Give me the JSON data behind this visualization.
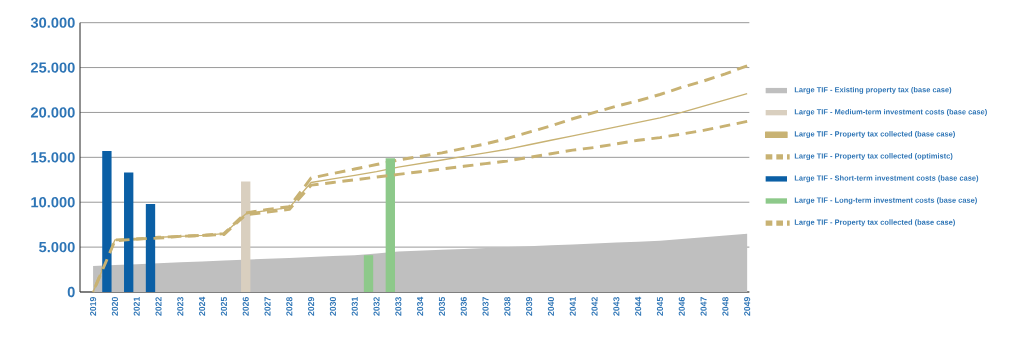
{
  "chart_data": {
    "type": "line",
    "categories": [
      "2019",
      "2020",
      "2021",
      "2022",
      "2023",
      "2024",
      "2025",
      "2026",
      "2027",
      "2028",
      "2029",
      "2030",
      "2031",
      "2032",
      "2033",
      "2034",
      "2035",
      "2036",
      "2037",
      "2038",
      "2039",
      "2040",
      "2041",
      "2042",
      "2043",
      "2044",
      "2045",
      "2046",
      "2047",
      "2048",
      "2049"
    ],
    "ylim": [
      0,
      30000
    ],
    "yticks": [
      {
        "value": 0,
        "label": "0"
      },
      {
        "value": 5000,
        "label": "5.000"
      },
      {
        "value": 10000,
        "label": "10.000"
      },
      {
        "value": 15000,
        "label": "15.000"
      },
      {
        "value": 20000,
        "label": "20.000"
      },
      {
        "value": 25000,
        "label": "25.000"
      },
      {
        "value": 30000,
        "label": "30.000"
      }
    ],
    "grid": "y",
    "legend": "right",
    "series": [
      {
        "name": "Large TIF - Existing property tax (base case)",
        "type": "area",
        "color": "#bfbfbf",
        "values": [
          2900,
          3000,
          3100,
          3200,
          3300,
          3400,
          3500,
          null,
          3700,
          3800,
          3900,
          4000,
          4100,
          4300,
          4500,
          4600,
          4700,
          4800,
          4900,
          5000,
          5100,
          5200,
          5300,
          5400,
          5500,
          5600,
          5700,
          5900,
          6100,
          6300,
          6500
        ]
      },
      {
        "name": "Large TIF - Medium-term investment costs (base case)",
        "type": "bar",
        "color": "#d9cfbf",
        "values": [
          null,
          null,
          null,
          null,
          null,
          null,
          null,
          12300,
          null,
          null,
          null,
          null,
          null,
          null,
          null,
          null,
          null,
          null,
          null,
          null,
          null,
          null,
          null,
          null,
          null,
          null,
          null,
          null,
          null,
          null,
          null
        ]
      },
      {
        "name": "Large TIF - Property tax collected (base case)",
        "line_style": "solid",
        "color": "#c8b273",
        "values": [
          0,
          5800,
          5900,
          6100,
          6200,
          6300,
          6500,
          8700,
          9100,
          9400,
          12200,
          12600,
          13000,
          13400,
          13900,
          14300,
          14700,
          15100,
          15500,
          15900,
          16400,
          16900,
          17400,
          17900,
          18400,
          18900,
          19400,
          20000,
          20700,
          21400,
          22100
        ]
      },
      {
        "name": "Large TIF - Property tax collected (optimistc)",
        "line_style": "dashed",
        "color": "#c8b273",
        "values": [
          0,
          5800,
          5900,
          6100,
          6200,
          6300,
          6500,
          8800,
          9200,
          9500,
          12700,
          13200,
          13700,
          14200,
          14700,
          15100,
          15500,
          16000,
          16500,
          17100,
          17800,
          18500,
          19300,
          20000,
          20700,
          21300,
          22000,
          22800,
          23500,
          24300,
          25200
        ]
      },
      {
        "name": "Large TIF - Short-term investment costs (base case)",
        "type": "bar",
        "color": "#0b5fa5",
        "values": [
          null,
          15700,
          13300,
          9800,
          null,
          null,
          null,
          null,
          null,
          null,
          null,
          null,
          null,
          null,
          null,
          null,
          null,
          null,
          null,
          null,
          null,
          null,
          null,
          null,
          null,
          null,
          null,
          null,
          null,
          null,
          null
        ]
      },
      {
        "name": "Large TIF - Long-term investment costs (base case)",
        "type": "bar",
        "color": "#8dc98a",
        "values": [
          null,
          null,
          null,
          null,
          null,
          null,
          null,
          null,
          null,
          null,
          null,
          null,
          null,
          4100,
          14900,
          null,
          null,
          null,
          null,
          null,
          null,
          null,
          null,
          null,
          null,
          null,
          null,
          null,
          null,
          null,
          null
        ]
      },
      {
        "name": "Large TIF - Property tax collected (base case)",
        "line_style": "dashed",
        "color": "#c8b273",
        "values": [
          0,
          5700,
          5900,
          6000,
          6200,
          6300,
          6400,
          8600,
          8900,
          9200,
          11900,
          12200,
          12500,
          12800,
          13100,
          13400,
          13700,
          14000,
          14300,
          14600,
          15000,
          15400,
          15800,
          16100,
          16500,
          16900,
          17200,
          17600,
          18000,
          18500,
          19000
        ]
      }
    ]
  }
}
